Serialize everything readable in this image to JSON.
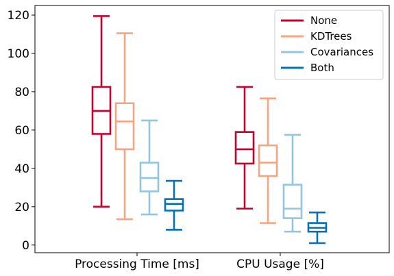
{
  "chart_data": {
    "type": "box",
    "categories": [
      "Processing Time [ms]",
      "CPU Usage [%]"
    ],
    "ylim": [
      -4,
      125
    ],
    "yticks": [
      0,
      20,
      40,
      60,
      80,
      100,
      120
    ],
    "grid": false,
    "legend_position": "top-right",
    "series": [
      {
        "name": "None",
        "color": "#c8002d",
        "boxes": [
          {
            "min": 20,
            "q1": 58,
            "median": 70,
            "q3": 82.5,
            "max": 119.5
          },
          {
            "min": 19,
            "q1": 42.5,
            "median": 50,
            "q3": 59,
            "max": 82.5
          }
        ]
      },
      {
        "name": "KDTrees",
        "color": "#f4a582",
        "boxes": [
          {
            "min": 13.5,
            "q1": 50,
            "median": 64.5,
            "q3": 74,
            "max": 110.5
          },
          {
            "min": 11.5,
            "q1": 36,
            "median": 43,
            "q3": 52,
            "max": 76.5
          }
        ]
      },
      {
        "name": "Covariances",
        "color": "#92c5de",
        "boxes": [
          {
            "min": 16,
            "q1": 28,
            "median": 35,
            "q3": 43,
            "max": 65
          },
          {
            "min": 7,
            "q1": 14,
            "median": 19,
            "q3": 31.5,
            "max": 57.5
          }
        ]
      },
      {
        "name": "Both",
        "color": "#0571b0",
        "boxes": [
          {
            "min": 8,
            "q1": 18,
            "median": 21.5,
            "q3": 24,
            "max": 33.5
          },
          {
            "min": 1,
            "q1": 7,
            "median": 9,
            "q3": 11.5,
            "max": 17
          }
        ]
      }
    ]
  }
}
